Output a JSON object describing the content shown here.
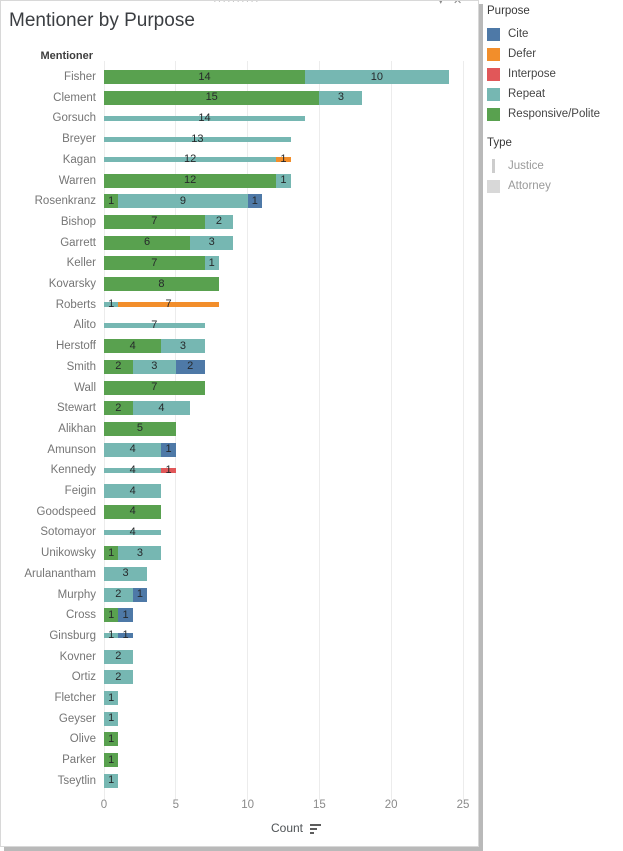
{
  "window": {
    "drag_handle": "··········",
    "caret_glyph": "▾",
    "close_glyph": "✕"
  },
  "title": "Mentioner by Purpose",
  "row_header": "Mentioner",
  "axis": {
    "label": "Count",
    "ticks": [
      0,
      5,
      10,
      15,
      20,
      25
    ],
    "max": 25
  },
  "colors": {
    "Cite": "#4e79a7",
    "Defer": "#f28e2b",
    "Interpose": "#e15759",
    "Repeat": "#76b7b2",
    "Responsive/Polite": "#59a14f",
    "justice_swatch": "#cdcdcd",
    "attorney_swatch": "#d8d8d8",
    "gridline": "#ececec"
  },
  "legend": {
    "purpose": {
      "title": "Purpose",
      "items": [
        {
          "label": "Cite",
          "color": "#4e79a7"
        },
        {
          "label": "Defer",
          "color": "#f28e2b"
        },
        {
          "label": "Interpose",
          "color": "#e15759"
        },
        {
          "label": "Repeat",
          "color": "#76b7b2"
        },
        {
          "label": "Responsive/Polite",
          "color": "#59a14f"
        }
      ]
    },
    "type": {
      "title": "Type",
      "items": [
        {
          "label": "Justice",
          "swatch": "thin"
        },
        {
          "label": "Attorney",
          "swatch": "square"
        }
      ]
    }
  },
  "chart_data": {
    "type": "bar",
    "orientation": "horizontal",
    "stacked": true,
    "title": "Mentioner by Purpose",
    "xlabel": "Count",
    "ylabel": "Mentioner",
    "xlim": [
      0,
      25
    ],
    "grid": true,
    "legend_position": "right",
    "purposes": [
      "Cite",
      "Defer",
      "Interpose",
      "Repeat",
      "Responsive/Polite"
    ],
    "bar_thickness_by_type": {
      "Justice": "thin",
      "Attorney": "thick"
    },
    "rows": [
      {
        "mentioner": "Fisher",
        "type": "Attorney",
        "segments": [
          {
            "purpose": "Responsive/Polite",
            "value": 14
          },
          {
            "purpose": "Repeat",
            "value": 10
          }
        ]
      },
      {
        "mentioner": "Clement",
        "type": "Attorney",
        "segments": [
          {
            "purpose": "Responsive/Polite",
            "value": 15
          },
          {
            "purpose": "Repeat",
            "value": 3
          }
        ]
      },
      {
        "mentioner": "Gorsuch",
        "type": "Justice",
        "segments": [
          {
            "purpose": "Repeat",
            "value": 14
          }
        ]
      },
      {
        "mentioner": "Breyer",
        "type": "Justice",
        "segments": [
          {
            "purpose": "Repeat",
            "value": 13
          }
        ]
      },
      {
        "mentioner": "Kagan",
        "type": "Justice",
        "segments": [
          {
            "purpose": "Repeat",
            "value": 12
          },
          {
            "purpose": "Defer",
            "value": 1
          }
        ]
      },
      {
        "mentioner": "Warren",
        "type": "Attorney",
        "segments": [
          {
            "purpose": "Responsive/Polite",
            "value": 12
          },
          {
            "purpose": "Repeat",
            "value": 1
          }
        ]
      },
      {
        "mentioner": "Rosenkranz",
        "type": "Attorney",
        "segments": [
          {
            "purpose": "Responsive/Polite",
            "value": 1
          },
          {
            "purpose": "Repeat",
            "value": 9
          },
          {
            "purpose": "Cite",
            "value": 1
          }
        ]
      },
      {
        "mentioner": "Bishop",
        "type": "Attorney",
        "segments": [
          {
            "purpose": "Responsive/Polite",
            "value": 7
          },
          {
            "purpose": "Repeat",
            "value": 2
          }
        ]
      },
      {
        "mentioner": "Garrett",
        "type": "Attorney",
        "segments": [
          {
            "purpose": "Responsive/Polite",
            "value": 6
          },
          {
            "purpose": "Repeat",
            "value": 3
          }
        ]
      },
      {
        "mentioner": "Keller",
        "type": "Attorney",
        "segments": [
          {
            "purpose": "Responsive/Polite",
            "value": 7
          },
          {
            "purpose": "Repeat",
            "value": 1
          }
        ]
      },
      {
        "mentioner": "Kovarsky",
        "type": "Attorney",
        "segments": [
          {
            "purpose": "Responsive/Polite",
            "value": 8
          }
        ]
      },
      {
        "mentioner": "Roberts",
        "type": "Justice",
        "segments": [
          {
            "purpose": "Repeat",
            "value": 1
          },
          {
            "purpose": "Defer",
            "value": 7
          }
        ]
      },
      {
        "mentioner": "Alito",
        "type": "Justice",
        "segments": [
          {
            "purpose": "Repeat",
            "value": 7
          }
        ]
      },
      {
        "mentioner": "Herstoff",
        "type": "Attorney",
        "segments": [
          {
            "purpose": "Responsive/Polite",
            "value": 4
          },
          {
            "purpose": "Repeat",
            "value": 3
          }
        ]
      },
      {
        "mentioner": "Smith",
        "type": "Attorney",
        "segments": [
          {
            "purpose": "Responsive/Polite",
            "value": 2
          },
          {
            "purpose": "Repeat",
            "value": 3
          },
          {
            "purpose": "Cite",
            "value": 2
          }
        ]
      },
      {
        "mentioner": "Wall",
        "type": "Attorney",
        "segments": [
          {
            "purpose": "Responsive/Polite",
            "value": 7
          }
        ]
      },
      {
        "mentioner": "Stewart",
        "type": "Attorney",
        "segments": [
          {
            "purpose": "Responsive/Polite",
            "value": 2
          },
          {
            "purpose": "Repeat",
            "value": 4
          }
        ]
      },
      {
        "mentioner": "Alikhan",
        "type": "Attorney",
        "segments": [
          {
            "purpose": "Responsive/Polite",
            "value": 5
          }
        ]
      },
      {
        "mentioner": "Amunson",
        "type": "Attorney",
        "segments": [
          {
            "purpose": "Repeat",
            "value": 4
          },
          {
            "purpose": "Cite",
            "value": 1
          }
        ]
      },
      {
        "mentioner": "Kennedy",
        "type": "Justice",
        "segments": [
          {
            "purpose": "Repeat",
            "value": 4
          },
          {
            "purpose": "Interpose",
            "value": 1
          }
        ]
      },
      {
        "mentioner": "Feigin",
        "type": "Attorney",
        "segments": [
          {
            "purpose": "Repeat",
            "value": 4
          }
        ]
      },
      {
        "mentioner": "Goodspeed",
        "type": "Attorney",
        "segments": [
          {
            "purpose": "Responsive/Polite",
            "value": 4
          }
        ]
      },
      {
        "mentioner": "Sotomayor",
        "type": "Justice",
        "segments": [
          {
            "purpose": "Repeat",
            "value": 4
          }
        ]
      },
      {
        "mentioner": "Unikowsky",
        "type": "Attorney",
        "segments": [
          {
            "purpose": "Responsive/Polite",
            "value": 1
          },
          {
            "purpose": "Repeat",
            "value": 3
          }
        ]
      },
      {
        "mentioner": "Arulanantham",
        "type": "Attorney",
        "segments": [
          {
            "purpose": "Repeat",
            "value": 3
          }
        ]
      },
      {
        "mentioner": "Murphy",
        "type": "Attorney",
        "segments": [
          {
            "purpose": "Repeat",
            "value": 2
          },
          {
            "purpose": "Cite",
            "value": 1
          }
        ]
      },
      {
        "mentioner": "Cross",
        "type": "Attorney",
        "segments": [
          {
            "purpose": "Responsive/Polite",
            "value": 1
          },
          {
            "purpose": "Cite",
            "value": 1
          }
        ]
      },
      {
        "mentioner": "Ginsburg",
        "type": "Justice",
        "segments": [
          {
            "purpose": "Repeat",
            "value": 1
          },
          {
            "purpose": "Cite",
            "value": 1
          }
        ]
      },
      {
        "mentioner": "Kovner",
        "type": "Attorney",
        "segments": [
          {
            "purpose": "Repeat",
            "value": 2
          }
        ]
      },
      {
        "mentioner": "Ortiz",
        "type": "Attorney",
        "segments": [
          {
            "purpose": "Repeat",
            "value": 2
          }
        ]
      },
      {
        "mentioner": "Fletcher",
        "type": "Attorney",
        "segments": [
          {
            "purpose": "Repeat",
            "value": 1
          }
        ]
      },
      {
        "mentioner": "Geyser",
        "type": "Attorney",
        "segments": [
          {
            "purpose": "Repeat",
            "value": 1
          }
        ]
      },
      {
        "mentioner": "Olive",
        "type": "Attorney",
        "segments": [
          {
            "purpose": "Responsive/Polite",
            "value": 1
          }
        ]
      },
      {
        "mentioner": "Parker",
        "type": "Attorney",
        "segments": [
          {
            "purpose": "Responsive/Polite",
            "value": 1
          }
        ]
      },
      {
        "mentioner": "Tseytlin",
        "type": "Attorney",
        "segments": [
          {
            "purpose": "Repeat",
            "value": 1
          }
        ]
      }
    ]
  }
}
